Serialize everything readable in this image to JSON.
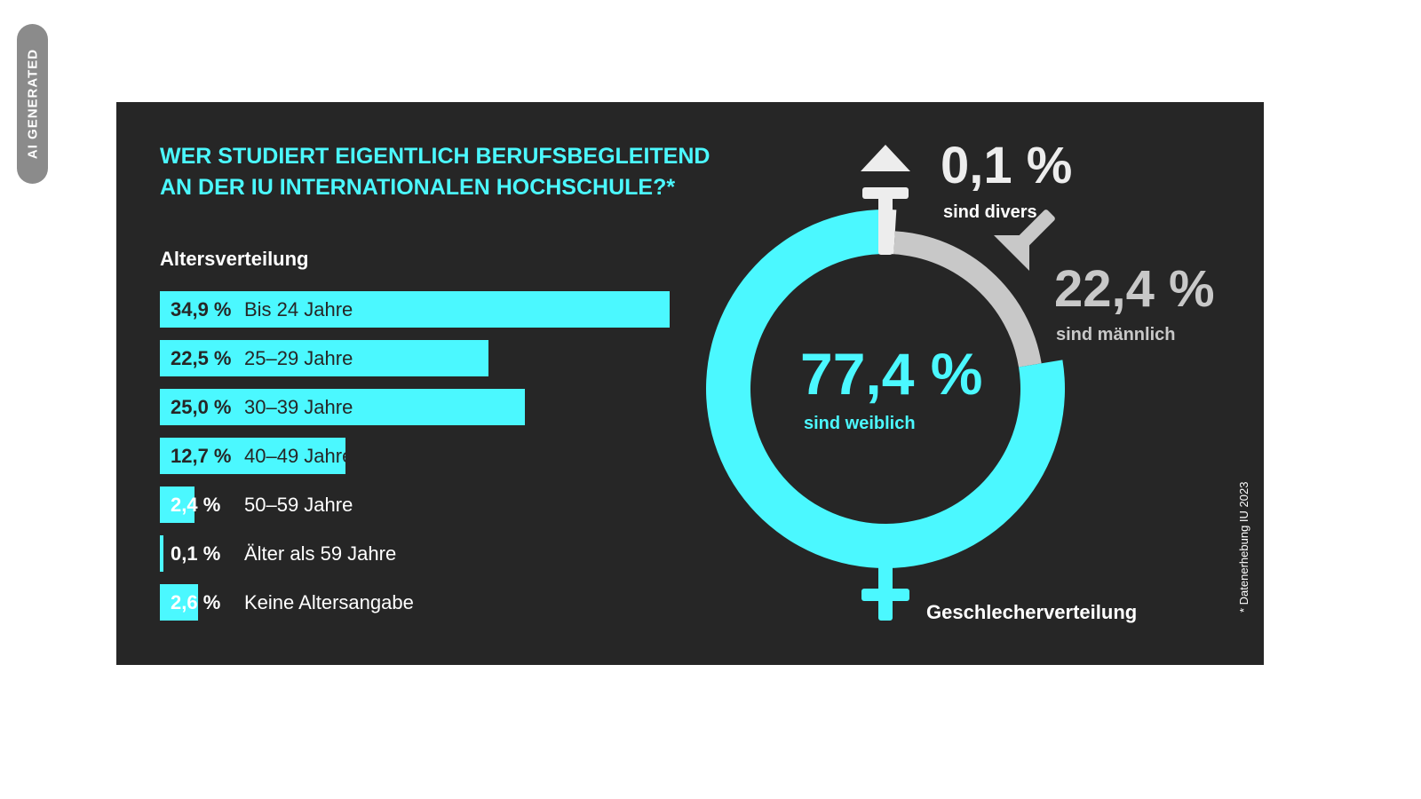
{
  "badge": "AI GENERATED",
  "title_lines": [
    "WER STUDIERT EIGENTLICH BERUFSBEGLEITEND",
    "AN DER IU INTERNATIONALEN HOCHSCHULE?*"
  ],
  "chart_data": [
    {
      "type": "bar",
      "orientation": "horizontal",
      "title": "Altersverteilung",
      "categories": [
        "Bis 24 Jahre",
        "25–29 Jahre",
        "30–39 Jahre",
        "40–49 Jahre",
        "50–59 Jahre",
        "Älter als 59 Jahre",
        "Keine Altersangabe"
      ],
      "values": [
        34.9,
        22.5,
        25.0,
        12.7,
        2.4,
        0.1,
        2.6
      ],
      "value_labels": [
        "34,9 %",
        "22,5 %",
        "25,0 %",
        "12,7 %",
        "2,4 %",
        "0,1 %",
        "2,6 %"
      ],
      "unit": "%",
      "color": "#4bf8ff"
    },
    {
      "type": "pie",
      "variant": "donut",
      "title": "Geschlecherverteilung",
      "categories": [
        "sind weiblich",
        "sind männlich",
        "sind divers"
      ],
      "values": [
        77.4,
        22.4,
        0.1
      ],
      "value_labels": [
        "77,4 %",
        "22,4 %",
        "0,1 %"
      ],
      "colors": [
        "#4bf8ff",
        "#c8c8c8",
        "#ededed"
      ],
      "symbols": [
        "female-symbol-icon",
        "male-symbol-icon",
        "diverse-symbol-icon"
      ]
    }
  ],
  "footnote": "* Datenerhebung IU 2023",
  "colors": {
    "background": "#262626",
    "accent": "#4bf8ff",
    "grey": "#c8c8c8",
    "text": "#ffffff"
  }
}
